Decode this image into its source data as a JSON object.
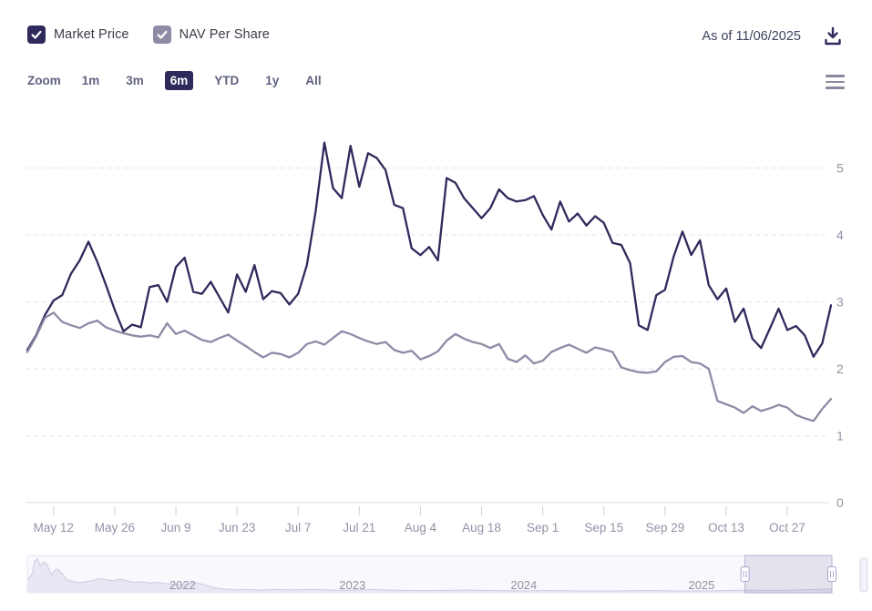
{
  "header": {
    "legend": [
      {
        "label": "Market Price",
        "checked": true,
        "color": "#2e2a5c"
      },
      {
        "label": "NAV Per Share",
        "checked": true,
        "color": "#8e8ba6"
      }
    ],
    "as_of": "As of 11/06/2025"
  },
  "toolbar": {
    "zoom_label": "Zoom",
    "ranges": [
      {
        "label": "1m",
        "active": false
      },
      {
        "label": "3m",
        "active": false
      },
      {
        "label": "6m",
        "active": true
      },
      {
        "label": "YTD",
        "active": false
      },
      {
        "label": "1y",
        "active": false
      },
      {
        "label": "All",
        "active": false
      }
    ]
  },
  "colors": {
    "accent_navy": "#2e2a5c",
    "nav_gray": "#8e8ba6",
    "gridline": "#e6e5f0",
    "axis_label": "#9094a6",
    "tick_mark": "#cfd0da",
    "navigator_bg": "#f9f8fd",
    "navigator_area_fill": "#e9e7f4",
    "navigator_area_line": "#cfcbe3",
    "navigator_mask_stroke": "#b7b2d4",
    "handle_stroke": "#aba6ce"
  },
  "chart_data": {
    "type": "line",
    "title": "",
    "xlabel": "",
    "ylabel": "",
    "grid": "horizontal-dashed",
    "y_axis_side": "right",
    "ylim": [
      0,
      5.6
    ],
    "y_ticks": [
      0,
      1,
      2,
      3,
      4,
      5
    ],
    "x_range": {
      "start": "2025-05-06",
      "end": "2025-11-06",
      "total_days": 184,
      "step_days": 2
    },
    "x_ticks": [
      {
        "label": "May 12",
        "day": 6
      },
      {
        "label": "May 26",
        "day": 20
      },
      {
        "label": "Jun 9",
        "day": 34
      },
      {
        "label": "Jun 23",
        "day": 48
      },
      {
        "label": "Jul 7",
        "day": 62
      },
      {
        "label": "Jul 21",
        "day": 76
      },
      {
        "label": "Aug 4",
        "day": 90
      },
      {
        "label": "Aug 18",
        "day": 104
      },
      {
        "label": "Sep 1",
        "day": 118
      },
      {
        "label": "Sep 15",
        "day": 132
      },
      {
        "label": "Sep 29",
        "day": 146
      },
      {
        "label": "Oct 13",
        "day": 160
      },
      {
        "label": "Oct 27",
        "day": 174
      }
    ],
    "series": [
      {
        "name": "Market Price",
        "color": "#2e2a5c",
        "values": [
          2.28,
          2.5,
          2.8,
          3.02,
          3.1,
          3.42,
          3.62,
          3.9,
          3.6,
          3.25,
          2.88,
          2.56,
          2.66,
          2.62,
          3.22,
          3.25,
          3.0,
          3.52,
          3.66,
          3.15,
          3.12,
          3.3,
          3.07,
          2.84,
          3.41,
          3.15,
          3.55,
          3.04,
          3.16,
          3.13,
          2.96,
          3.12,
          3.55,
          4.35,
          5.38,
          4.7,
          4.55,
          5.33,
          4.72,
          5.22,
          5.15,
          4.97,
          4.45,
          4.4,
          3.8,
          3.7,
          3.82,
          3.62,
          4.85,
          4.78,
          4.55,
          4.4,
          4.25,
          4.4,
          4.68,
          4.55,
          4.5,
          4.52,
          4.58,
          4.3,
          4.08,
          4.5,
          4.2,
          4.32,
          4.14,
          4.28,
          4.18,
          3.88,
          3.85,
          3.58,
          2.65,
          2.58,
          3.1,
          3.18,
          3.68,
          4.05,
          3.7,
          3.92,
          3.25,
          3.04,
          3.2,
          2.7,
          2.9,
          2.45,
          2.31,
          2.6,
          2.9,
          2.58,
          2.64,
          2.5,
          2.18,
          2.38,
          2.95
        ]
      },
      {
        "name": "NAV Per Share",
        "color": "#8e8ba6",
        "values": [
          2.25,
          2.48,
          2.76,
          2.84,
          2.7,
          2.65,
          2.61,
          2.68,
          2.72,
          2.62,
          2.57,
          2.53,
          2.5,
          2.48,
          2.5,
          2.47,
          2.68,
          2.52,
          2.57,
          2.5,
          2.43,
          2.4,
          2.46,
          2.51,
          2.42,
          2.34,
          2.25,
          2.17,
          2.24,
          2.22,
          2.17,
          2.24,
          2.37,
          2.41,
          2.36,
          2.46,
          2.56,
          2.52,
          2.46,
          2.41,
          2.37,
          2.4,
          2.28,
          2.24,
          2.27,
          2.14,
          2.19,
          2.26,
          2.42,
          2.52,
          2.45,
          2.4,
          2.37,
          2.31,
          2.37,
          2.15,
          2.1,
          2.2,
          2.08,
          2.12,
          2.25,
          2.31,
          2.36,
          2.3,
          2.24,
          2.32,
          2.29,
          2.25,
          2.02,
          1.98,
          1.95,
          1.94,
          1.96,
          2.1,
          2.18,
          2.19,
          2.1,
          2.08,
          2.0,
          1.52,
          1.47,
          1.42,
          1.34,
          1.44,
          1.37,
          1.41,
          1.46,
          1.42,
          1.31,
          1.26,
          1.22,
          1.4,
          1.55
        ]
      }
    ],
    "navigator": {
      "year_labels": [
        "2022",
        "2023",
        "2024",
        "2025"
      ],
      "year_fractions": [
        0.193,
        0.404,
        0.617,
        0.838
      ],
      "selected_range_fraction": [
        0.892,
        1.0
      ],
      "area_points": [
        [
          0.0,
          0.34
        ],
        [
          0.006,
          0.5
        ],
        [
          0.009,
          0.85
        ],
        [
          0.013,
          0.9
        ],
        [
          0.016,
          0.72
        ],
        [
          0.02,
          0.82
        ],
        [
          0.024,
          0.78
        ],
        [
          0.03,
          0.48
        ],
        [
          0.034,
          0.6
        ],
        [
          0.038,
          0.64
        ],
        [
          0.043,
          0.52
        ],
        [
          0.049,
          0.35
        ],
        [
          0.057,
          0.3
        ],
        [
          0.065,
          0.27
        ],
        [
          0.074,
          0.3
        ],
        [
          0.082,
          0.33
        ],
        [
          0.09,
          0.38
        ],
        [
          0.098,
          0.35
        ],
        [
          0.106,
          0.32
        ],
        [
          0.115,
          0.36
        ],
        [
          0.124,
          0.32
        ],
        [
          0.133,
          0.28
        ],
        [
          0.142,
          0.3
        ],
        [
          0.152,
          0.26
        ],
        [
          0.163,
          0.28
        ],
        [
          0.175,
          0.24
        ],
        [
          0.188,
          0.22
        ],
        [
          0.198,
          0.23
        ],
        [
          0.21,
          0.26
        ],
        [
          0.22,
          0.22
        ],
        [
          0.232,
          0.14
        ],
        [
          0.245,
          0.1
        ],
        [
          0.26,
          0.08
        ],
        [
          0.275,
          0.09
        ],
        [
          0.29,
          0.07
        ],
        [
          0.31,
          0.09
        ],
        [
          0.33,
          0.08
        ],
        [
          0.355,
          0.09
        ],
        [
          0.38,
          0.07
        ],
        [
          0.404,
          0.07
        ],
        [
          0.425,
          0.09
        ],
        [
          0.45,
          0.07
        ],
        [
          0.48,
          0.06
        ],
        [
          0.51,
          0.06
        ],
        [
          0.545,
          0.07
        ],
        [
          0.58,
          0.06
        ],
        [
          0.617,
          0.05
        ],
        [
          0.65,
          0.06
        ],
        [
          0.69,
          0.05
        ],
        [
          0.73,
          0.05
        ],
        [
          0.77,
          0.06
        ],
        [
          0.81,
          0.05
        ],
        [
          0.838,
          0.05
        ],
        [
          0.87,
          0.06
        ],
        [
          0.9,
          0.07
        ],
        [
          0.93,
          0.06
        ],
        [
          0.965,
          0.08
        ],
        [
          1.0,
          0.1
        ]
      ]
    }
  }
}
